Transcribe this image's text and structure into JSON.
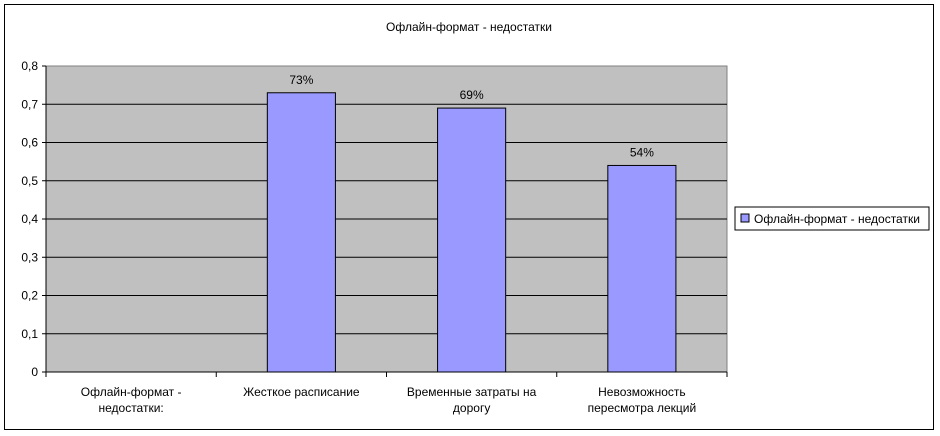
{
  "chart_data": {
    "type": "bar",
    "title": "Офлайн-формат - недостатки",
    "categories": [
      [
        "Офлайн-формат -",
        "недостатки:"
      ],
      [
        "Жесткое расписание"
      ],
      [
        "Временные затраты на",
        "дорогу"
      ],
      [
        "Невозможность",
        "пересмотра лекций"
      ]
    ],
    "series": [
      {
        "name": "Офлайн-формат - недостатки",
        "values": [
          null,
          0.73,
          0.69,
          0.54
        ],
        "data_labels": [
          "",
          "73%",
          "69%",
          "54%"
        ],
        "color": "#9999ff"
      }
    ],
    "y_ticks": [
      "0",
      "0,1",
      "0,2",
      "0,3",
      "0,4",
      "0,5",
      "0,6",
      "0,7",
      "0,8"
    ],
    "ylim": [
      0,
      0.8
    ],
    "grid": true,
    "plot_background": "#c0c0c0",
    "legend_position": "right"
  }
}
